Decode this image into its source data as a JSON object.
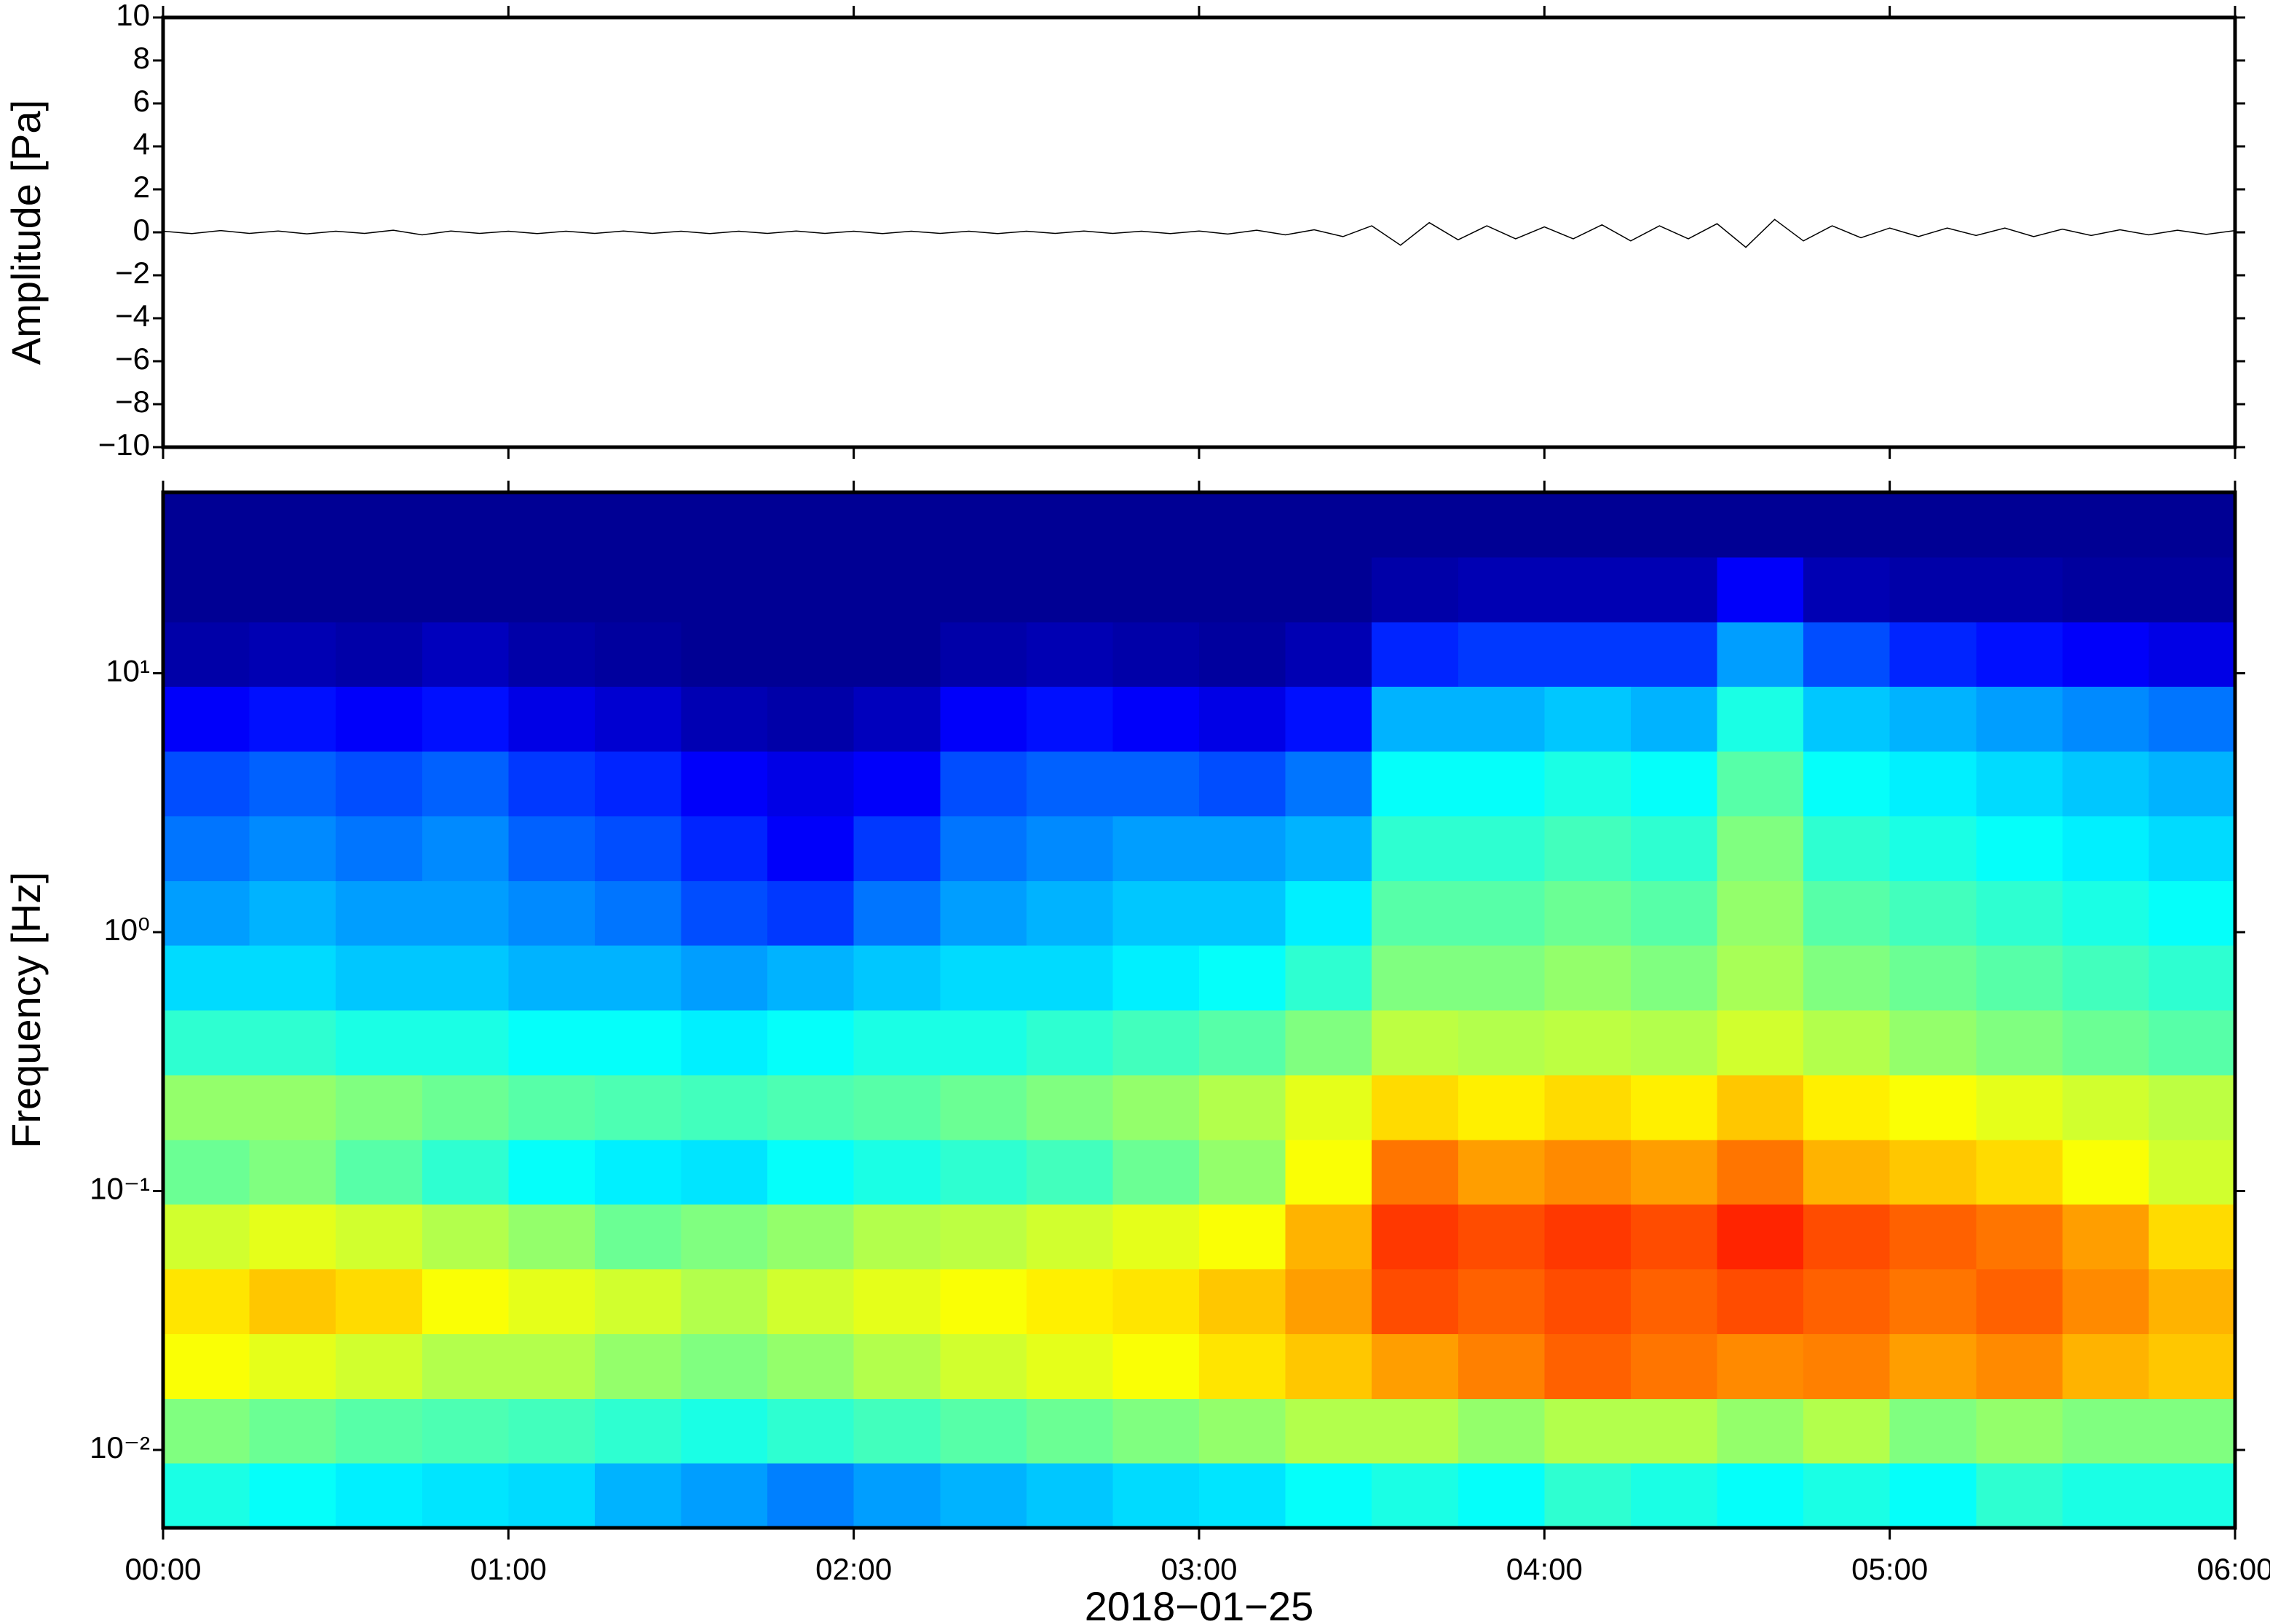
{
  "chart_data": [
    {
      "type": "line",
      "ylabel": "Amplitude [Pa]",
      "color": "#000000",
      "xlim": [
        "00:00",
        "06:00"
      ],
      "x": [
        "00:00",
        "00:05",
        "00:10",
        "00:15",
        "00:20",
        "00:25",
        "00:30",
        "00:35",
        "00:40",
        "00:45",
        "00:50",
        "00:55",
        "01:00",
        "01:05",
        "01:10",
        "01:15",
        "01:20",
        "01:25",
        "01:30",
        "01:35",
        "01:40",
        "01:45",
        "01:50",
        "01:55",
        "02:00",
        "02:05",
        "02:10",
        "02:15",
        "02:20",
        "02:25",
        "02:30",
        "02:35",
        "02:40",
        "02:45",
        "02:50",
        "02:55",
        "03:00",
        "03:05",
        "03:10",
        "03:15",
        "03:20",
        "03:25",
        "03:30",
        "03:35",
        "03:40",
        "03:45",
        "03:50",
        "03:55",
        "04:00",
        "04:05",
        "04:10",
        "04:15",
        "04:20",
        "04:25",
        "04:30",
        "04:35",
        "04:40",
        "04:45",
        "04:50",
        "04:55",
        "05:00",
        "05:05",
        "05:10",
        "05:15",
        "05:20",
        "05:25",
        "05:30",
        "05:35",
        "05:40",
        "05:45",
        "05:50",
        "05:55",
        "06:00"
      ],
      "values": [
        0.05,
        -0.06,
        0.08,
        -0.05,
        0.06,
        -0.07,
        0.05,
        -0.05,
        0.1,
        -0.12,
        0.06,
        -0.05,
        0.05,
        -0.06,
        0.05,
        -0.05,
        0.06,
        -0.05,
        0.05,
        -0.06,
        0.05,
        -0.05,
        0.06,
        -0.05,
        0.05,
        -0.06,
        0.05,
        -0.05,
        0.05,
        -0.06,
        0.05,
        -0.05,
        0.06,
        -0.05,
        0.05,
        -0.06,
        0.06,
        -0.08,
        0.1,
        -0.12,
        0.12,
        -0.2,
        0.3,
        -0.6,
        0.45,
        -0.35,
        0.3,
        -0.3,
        0.25,
        -0.3,
        0.35,
        -0.4,
        0.3,
        -0.3,
        0.4,
        -0.7,
        0.6,
        -0.4,
        0.3,
        -0.25,
        0.2,
        -0.2,
        0.2,
        -0.15,
        0.2,
        -0.2,
        0.15,
        -0.15,
        0.12,
        -0.12,
        0.1,
        -0.1,
        0.08
      ],
      "ylim": [
        -10,
        10
      ],
      "yticks": [
        {
          "value": -10,
          "label": "−10"
        },
        {
          "value": -8,
          "label": "−8"
        },
        {
          "value": -6,
          "label": "−6"
        },
        {
          "value": -4,
          "label": "−4"
        },
        {
          "value": -2,
          "label": "−2"
        },
        0,
        2,
        4,
        6,
        8,
        10
      ]
    },
    {
      "type": "heatmap",
      "ylabel": "Frequency [Hz]",
      "xlabel": "2018−01−25",
      "colormap": "jet",
      "log_y": true,
      "xlim": [
        "00:00",
        "06:00"
      ],
      "xticks": [
        "00:00",
        "01:00",
        "02:00",
        "03:00",
        "04:00",
        "05:00",
        "06:00"
      ],
      "ylim": [
        0.005,
        50
      ],
      "yticks": [
        {
          "value": 0.01,
          "label": "10⁻²"
        },
        {
          "value": 0.1,
          "label": "10⁻¹"
        },
        {
          "value": 1,
          "label": "10⁰"
        },
        {
          "value": 10,
          "label": "10¹"
        }
      ],
      "zlim": [
        0,
        100
      ],
      "time_bins": [
        "00:00",
        "00:15",
        "00:30",
        "00:45",
        "01:00",
        "01:15",
        "01:30",
        "01:45",
        "02:00",
        "02:15",
        "02:30",
        "02:45",
        "03:00",
        "03:15",
        "03:30",
        "03:45",
        "04:00",
        "04:15",
        "04:30",
        "04:45",
        "05:00",
        "05:15",
        "05:30",
        "05:45",
        "06:00"
      ],
      "freq_bins": [
        0.005,
        0.0089,
        0.0158,
        0.0281,
        0.05,
        0.089,
        0.158,
        0.281,
        0.5,
        0.89,
        1.58,
        2.81,
        5,
        8.9,
        15.8,
        28.1,
        50
      ],
      "z": [
        [
          40,
          38,
          36,
          35,
          34,
          30,
          28,
          25,
          28,
          30,
          32,
          34,
          35,
          38,
          40,
          38,
          42,
          40,
          38,
          40,
          38,
          42,
          40,
          40
        ],
        [
          50,
          48,
          46,
          45,
          44,
          42,
          40,
          42,
          44,
          46,
          48,
          50,
          52,
          55,
          55,
          52,
          55,
          55,
          52,
          55,
          50,
          52,
          50,
          50
        ],
        [
          62,
          60,
          58,
          55,
          55,
          52,
          50,
          52,
          55,
          58,
          60,
          62,
          65,
          68,
          72,
          75,
          78,
          76,
          74,
          75,
          72,
          74,
          70,
          68
        ],
        [
          65,
          68,
          66,
          62,
          60,
          58,
          55,
          58,
          60,
          62,
          64,
          65,
          68,
          72,
          80,
          78,
          80,
          78,
          80,
          78,
          76,
          78,
          74,
          70
        ],
        [
          58,
          60,
          58,
          55,
          52,
          48,
          50,
          52,
          55,
          56,
          58,
          60,
          62,
          70,
          82,
          80,
          82,
          80,
          84,
          80,
          78,
          76,
          72,
          66
        ],
        [
          48,
          50,
          46,
          42,
          38,
          36,
          35,
          38,
          40,
          42,
          44,
          48,
          52,
          62,
          76,
          72,
          74,
          72,
          76,
          70,
          68,
          66,
          62,
          58
        ],
        [
          52,
          52,
          50,
          48,
          46,
          45,
          44,
          45,
          46,
          48,
          50,
          52,
          55,
          60,
          66,
          64,
          66,
          64,
          68,
          64,
          62,
          60,
          58,
          56
        ],
        [
          42,
          42,
          40,
          40,
          38,
          38,
          36,
          38,
          40,
          40,
          42,
          44,
          46,
          50,
          56,
          55,
          56,
          55,
          58,
          55,
          52,
          50,
          48,
          46
        ],
        [
          34,
          34,
          32,
          32,
          30,
          30,
          28,
          30,
          32,
          34,
          34,
          36,
          38,
          42,
          50,
          50,
          52,
          50,
          54,
          50,
          48,
          46,
          44,
          42
        ],
        [
          28,
          30,
          28,
          28,
          26,
          24,
          20,
          18,
          24,
          28,
          30,
          32,
          32,
          36,
          46,
          46,
          48,
          46,
          52,
          46,
          44,
          42,
          40,
          38
        ],
        [
          24,
          26,
          24,
          26,
          22,
          20,
          16,
          12,
          18,
          24,
          26,
          28,
          28,
          30,
          42,
          42,
          44,
          42,
          50,
          42,
          40,
          38,
          36,
          34
        ],
        [
          20,
          22,
          20,
          22,
          18,
          16,
          12,
          10,
          12,
          20,
          22,
          22,
          20,
          24,
          38,
          38,
          40,
          38,
          46,
          38,
          36,
          34,
          32,
          30
        ],
        [
          12,
          14,
          12,
          14,
          10,
          8,
          5,
          4,
          6,
          12,
          14,
          12,
          10,
          14,
          30,
          30,
          32,
          30,
          40,
          32,
          30,
          28,
          26,
          24
        ],
        [
          4,
          5,
          4,
          6,
          4,
          3,
          2,
          2,
          2,
          4,
          5,
          4,
          3,
          5,
          16,
          18,
          18,
          18,
          28,
          20,
          16,
          14,
          12,
          10
        ],
        [
          2,
          2,
          2,
          2,
          2,
          2,
          2,
          2,
          2,
          2,
          2,
          2,
          2,
          2,
          4,
          5,
          5,
          5,
          12,
          5,
          4,
          4,
          3,
          3
        ],
        [
          2,
          2,
          2,
          2,
          2,
          2,
          2,
          2,
          2,
          2,
          2,
          2,
          2,
          2,
          2,
          2,
          2,
          2,
          2,
          2,
          2,
          2,
          2,
          2
        ]
      ]
    }
  ]
}
